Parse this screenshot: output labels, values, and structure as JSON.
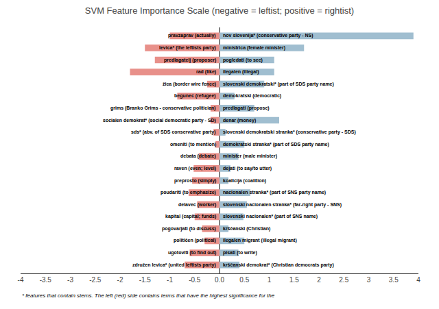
{
  "chart_data": {
    "type": "bar",
    "orientation": "horizontal",
    "title": "SVM Feature Importance Scale (negative = leftist; positive = rightist)",
    "categories": [
      "pravzaprav (actually)",
      "levica* (the leftists party)",
      "predlagatelj (proposer)",
      "rad (like)",
      "žica (border wire fence)",
      "begunec (refugee)",
      "grims (Branko Grims - conservative politician)",
      "socialen demokrat* (social democratic party - SD)",
      "sds* (abv. of SDS conservative party)",
      "omeniti (to mention)",
      "debata (debate)",
      "raven (even; level)",
      "preprosto (simply)",
      "poudariti (to emphasize)",
      "delavec (worker)",
      "kapital (capital; funds)",
      "pogovarjati (to discuss)",
      "političen (political)",
      "ugotoviti (to find out)",
      "združen levica* (united leftists party)"
    ],
    "annotations": [
      "nov slovenija* (conservative party - NS)",
      "ministrica (female minister)",
      "pogledati (to see)",
      "ilegalen (illegal)",
      "slovenski demokratski* (part of SDS party name)",
      "demokratski (democratic)",
      "predlagati (propose)",
      "denar (money)",
      "slovenski demokratski stranka* (conservative party - SDS)",
      "demokratski stranka* (part of SDS party name)",
      "minister (male minister)",
      "dejati (to say/to utter)",
      "koalicija (coalition)",
      "nacionalen stranka* (part of SNS party name)",
      "slovenski nacionalen stranka* (far-right party - SNS)",
      "slovenski nacionalen* (part of SNS name)",
      "krščanski (Christian)",
      "ilegalen migrant (illegal migrant)",
      "pisati (to write)",
      "krščanski demokrat* (Christian democrats party)"
    ],
    "series": [
      {
        "color": "#E8908A",
        "values": [
          -1.0,
          -1.5,
          -1.3,
          -1.8,
          -0.25,
          -0.85,
          -0.18,
          -0.18,
          -0.12,
          -0.08,
          -0.42,
          -0.52,
          -0.55,
          -0.62,
          -0.45,
          -0.5,
          -0.35,
          -0.3,
          -0.6,
          -0.7
        ]
      },
      {
        "color": "#A0BED0",
        "values": [
          3.9,
          1.7,
          1.1,
          1.1,
          0.9,
          0.3,
          0.7,
          1.2,
          0.12,
          0.5,
          0.38,
          0.22,
          0.18,
          0.62,
          0.55,
          0.48,
          0.18,
          0.5,
          0.38,
          0.4
        ]
      }
    ],
    "xlim": [
      -4.0,
      4.0
    ],
    "xticks": [
      -4,
      -3.5,
      -3,
      -2.5,
      -2,
      -1.5,
      -1,
      -0.5,
      {
        "value": 0,
        "label": "0.0"
      },
      0.5,
      1,
      1.5,
      2,
      2.5,
      3,
      3.5,
      4
    ],
    "tick_labels": "x",
    "grid": false,
    "footnote": "* features that contain stems. The left (red) side contains terms that have the highest significance for the"
  }
}
